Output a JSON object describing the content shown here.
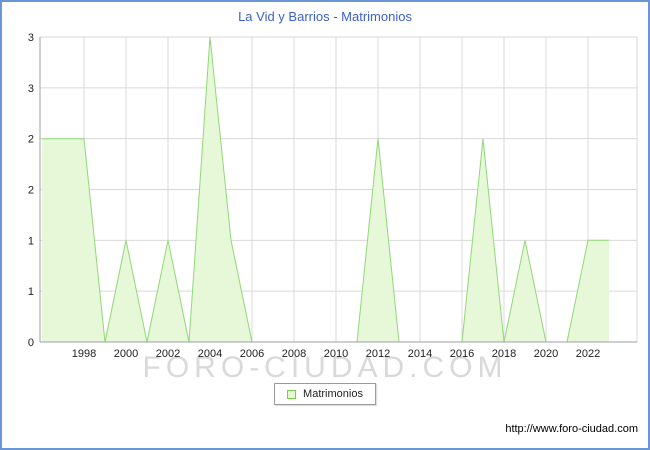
{
  "frame": {
    "border_color": "#6b96d6",
    "background": "#ffffff"
  },
  "title": {
    "text": "La Vid y Barrios - Matrimonios",
    "color": "#3b5fcc"
  },
  "watermark": {
    "text": "FORO-CIUDAD.COM",
    "color": "#d9d9d9"
  },
  "legend": {
    "label": "Matrimonios",
    "swatch_fill": "#e7f8d8",
    "swatch_border": "#7ac943"
  },
  "footer": {
    "url": "http://www.foro-ciudad.com"
  },
  "chart_data": {
    "type": "area",
    "title": "La Vid y Barrios - Matrimonios",
    "series_name": "Matrimonios",
    "x": [
      1996,
      1997,
      1998,
      1999,
      2000,
      2001,
      2002,
      2003,
      2004,
      2005,
      2006,
      2007,
      2008,
      2009,
      2010,
      2011,
      2012,
      2013,
      2014,
      2015,
      2016,
      2017,
      2018,
      2019,
      2020,
      2021,
      2022,
      2023
    ],
    "values": [
      2,
      2,
      2,
      0,
      1,
      0,
      1,
      0,
      3,
      1,
      0,
      0,
      0,
      0,
      0,
      0,
      2,
      0,
      0,
      0,
      0,
      2,
      0,
      1,
      0,
      0,
      1,
      1
    ],
    "x_ticks": [
      1998,
      2000,
      2002,
      2004,
      2006,
      2008,
      2010,
      2012,
      2014,
      2016,
      2018,
      2020,
      2022
    ],
    "y_ticks": [
      {
        "v": 0,
        "label": "0"
      },
      {
        "v": 0.5,
        "label": "1"
      },
      {
        "v": 1,
        "label": "1"
      },
      {
        "v": 1.5,
        "label": "2"
      },
      {
        "v": 2,
        "label": "2"
      },
      {
        "v": 2.5,
        "label": "3"
      },
      {
        "v": 3,
        "label": "3"
      }
    ],
    "xlim": [
      1996,
      2023
    ],
    "ylim": [
      0,
      3
    ],
    "grid": true,
    "legend_position": "bottom-center",
    "area_fill": "#e7f8d8",
    "line_color": "#8fd877",
    "grid_color": "#d9d9d9",
    "axis_color": "#9aa0a6",
    "tick_label_color": "#222222"
  }
}
